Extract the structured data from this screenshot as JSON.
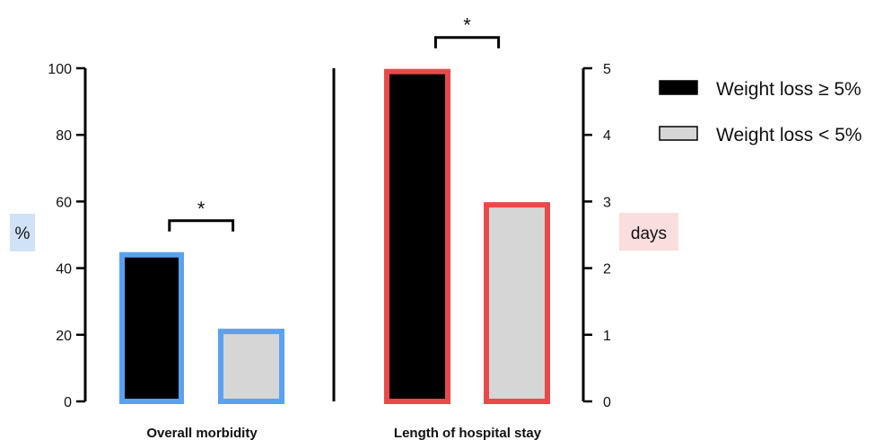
{
  "chart_data": {
    "type": "bar",
    "legend": [
      {
        "label": "Weight loss ≥ 5%",
        "color": "#000000"
      },
      {
        "label": "Weight loss < 5%",
        "color": "#d6d6d6"
      }
    ],
    "legend_position": "top-right",
    "grid": false,
    "panels": [
      {
        "category": "Overall morbidity",
        "axis": "left",
        "unit_label": "%",
        "unit_label_bg": "#cfe2f7",
        "outline_color": "#5aa2ef",
        "ylim": [
          0,
          100
        ],
        "ticks": [
          "0",
          "20",
          "40",
          "60",
          "80",
          "100"
        ],
        "series": [
          {
            "legend_index": 0,
            "value": 44
          },
          {
            "legend_index": 1,
            "value": 21
          }
        ],
        "significance": "*"
      },
      {
        "category": "Length of hospital stay",
        "axis": "right",
        "unit_label": "days",
        "unit_label_bg": "#fadede",
        "outline_color": "#e84a4a",
        "ylim": [
          0,
          5
        ],
        "ticks": [
          "0",
          "1",
          "2",
          "3",
          "4",
          "5"
        ],
        "series": [
          {
            "legend_index": 0,
            "value": 4.95
          },
          {
            "legend_index": 1,
            "value": 2.95
          }
        ],
        "significance": "*"
      }
    ]
  }
}
